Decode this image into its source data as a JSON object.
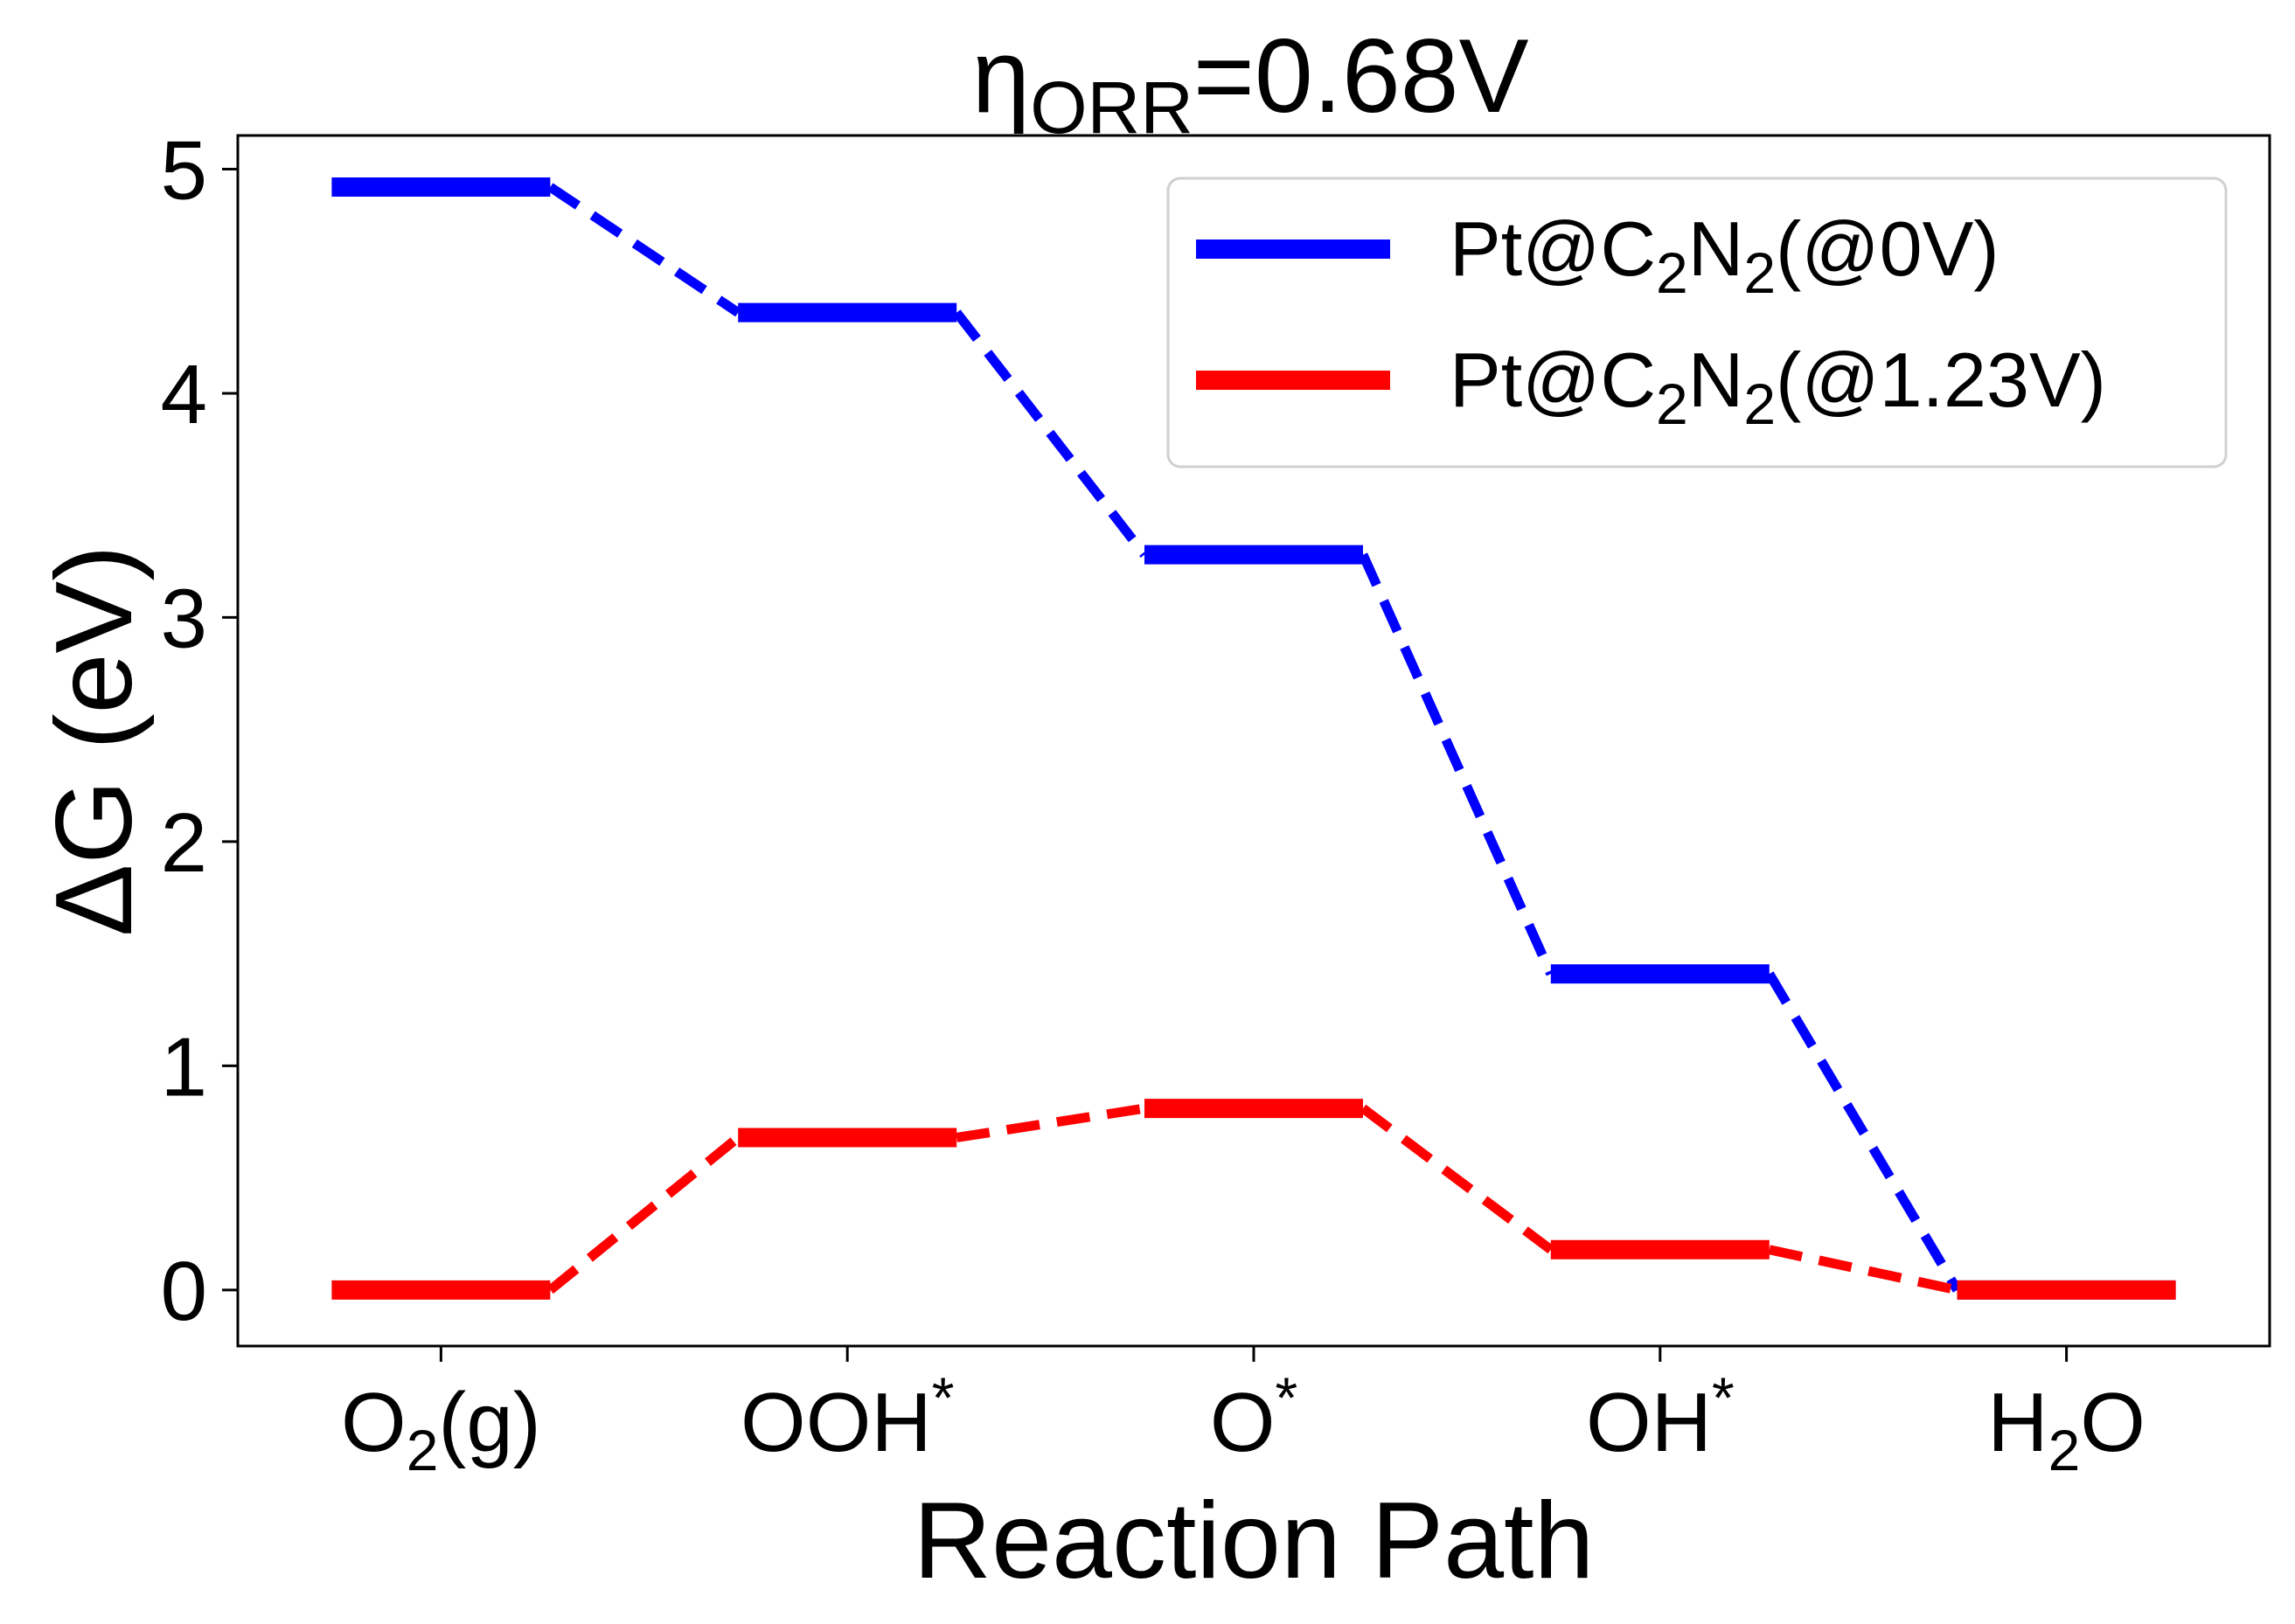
{
  "chart_data": {
    "type": "line",
    "title": {
      "prefix": "η",
      "subscript": "ORR",
      "suffix": "=0.68V"
    },
    "xlabel": "Reaction Path",
    "ylabel": "ΔG (eV)",
    "ylim": [
      -0.25,
      5.15
    ],
    "yticks": [
      0,
      1,
      2,
      3,
      4,
      5
    ],
    "grid": false,
    "legend_position": "top-right",
    "categories": [
      {
        "base": "O",
        "sub": "2",
        "tail": "(g)",
        "sup": ""
      },
      {
        "base": "OOH",
        "sub": "",
        "tail": "",
        "sup": "*"
      },
      {
        "base": "O",
        "sub": "",
        "tail": "",
        "sup": "*"
      },
      {
        "base": "OH",
        "sub": "",
        "tail": "",
        "sup": "*"
      },
      {
        "base": "H",
        "sub": "2",
        "tail": "O",
        "sup": ""
      }
    ],
    "series": [
      {
        "name": {
          "parts": [
            [
              "Pt@C",
              ""
            ],
            [
              "2",
              "sub"
            ],
            [
              "N",
              ""
            ],
            [
              "2",
              "sub"
            ],
            [
              "(@0V)",
              ""
            ]
          ]
        },
        "color": "#0000ff",
        "values": [
          4.92,
          4.36,
          3.28,
          1.41,
          0.0
        ]
      },
      {
        "name": {
          "parts": [
            [
              "Pt@C",
              ""
            ],
            [
              "2",
              "sub"
            ],
            [
              "N",
              ""
            ],
            [
              "2",
              "sub"
            ],
            [
              "(@1.23V)",
              ""
            ]
          ]
        },
        "color": "#ff0000",
        "values": [
          0.0,
          0.68,
          0.81,
          0.18,
          0.0
        ]
      }
    ]
  }
}
